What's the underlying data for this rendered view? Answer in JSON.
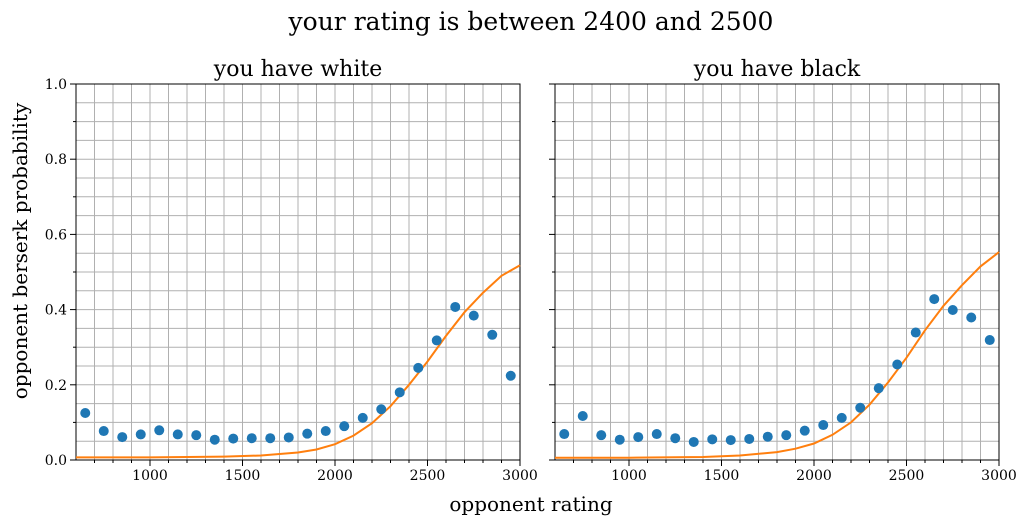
{
  "figure": {
    "suptitle": "your rating is between 2400 and 2500",
    "xlabel": "opponent rating",
    "ylabel": "opponent berserk probability"
  },
  "colors": {
    "points": "#1f77b4",
    "curve": "#ff7f0e",
    "grid": "#b0b0b0"
  },
  "chart_data": [
    {
      "type": "scatter",
      "title": "you have white",
      "xlim": [
        600,
        3000
      ],
      "ylim": [
        0,
        1
      ],
      "xticks": [
        1000,
        1500,
        2000,
        2500,
        3000
      ],
      "yticks": [
        0.0,
        0.2,
        0.4,
        0.6,
        0.8,
        1.0
      ],
      "grid": true,
      "series": [
        {
          "kind": "points",
          "x": [
            650,
            750,
            850,
            950,
            1050,
            1150,
            1250,
            1350,
            1450,
            1550,
            1650,
            1750,
            1850,
            1950,
            2050,
            2150,
            2250,
            2350,
            2450,
            2550,
            2650,
            2750,
            2850,
            2950
          ],
          "y": [
            0.125,
            0.077,
            0.061,
            0.068,
            0.079,
            0.068,
            0.066,
            0.054,
            0.057,
            0.058,
            0.058,
            0.06,
            0.07,
            0.077,
            0.09,
            0.112,
            0.135,
            0.18,
            0.245,
            0.318,
            0.407,
            0.384,
            0.333,
            0.224
          ]
        },
        {
          "kind": "curve",
          "x": [
            600,
            1000,
            1400,
            1600,
            1800,
            1900,
            2000,
            2100,
            2200,
            2300,
            2400,
            2500,
            2600,
            2700,
            2800,
            2900,
            3000
          ],
          "y": [
            0.007,
            0.007,
            0.009,
            0.012,
            0.02,
            0.028,
            0.042,
            0.065,
            0.098,
            0.143,
            0.2,
            0.262,
            0.33,
            0.393,
            0.445,
            0.49,
            0.518
          ]
        }
      ]
    },
    {
      "type": "scatter",
      "title": "you have black",
      "xlim": [
        600,
        3000
      ],
      "ylim": [
        0,
        1
      ],
      "xticks": [
        1000,
        1500,
        2000,
        2500,
        3000
      ],
      "yticks": [
        0.0,
        0.2,
        0.4,
        0.6,
        0.8,
        1.0
      ],
      "grid": true,
      "series": [
        {
          "kind": "points",
          "x": [
            650,
            750,
            850,
            950,
            1050,
            1150,
            1250,
            1350,
            1450,
            1550,
            1650,
            1750,
            1850,
            1950,
            2050,
            2150,
            2250,
            2350,
            2450,
            2550,
            2650,
            2750,
            2850,
            2950
          ],
          "y": [
            0.069,
            0.117,
            0.066,
            0.054,
            0.061,
            0.069,
            0.058,
            0.048,
            0.055,
            0.053,
            0.056,
            0.062,
            0.066,
            0.078,
            0.093,
            0.112,
            0.139,
            0.191,
            0.254,
            0.339,
            0.428,
            0.399,
            0.379,
            0.319
          ]
        },
        {
          "kind": "curve",
          "x": [
            600,
            1000,
            1400,
            1600,
            1800,
            1900,
            2000,
            2100,
            2200,
            2300,
            2400,
            2500,
            2600,
            2700,
            2800,
            2900,
            3000
          ],
          "y": [
            0.006,
            0.006,
            0.008,
            0.012,
            0.021,
            0.03,
            0.044,
            0.067,
            0.1,
            0.147,
            0.206,
            0.272,
            0.345,
            0.41,
            0.465,
            0.515,
            0.553
          ]
        }
      ]
    }
  ]
}
